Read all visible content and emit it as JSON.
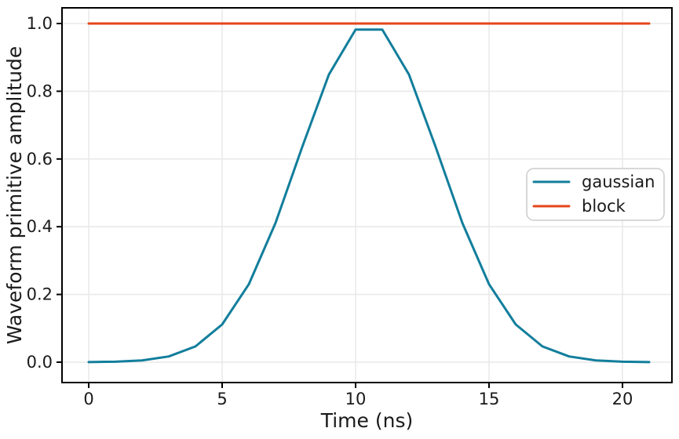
{
  "chart_data": {
    "type": "line",
    "title": "",
    "xlabel": "Time (ns)",
    "ylabel": "Waveform primitive amplitude",
    "x": [
      0,
      1,
      2,
      3,
      4,
      5,
      6,
      7,
      8,
      9,
      10,
      11,
      12,
      13,
      14,
      15,
      16,
      17,
      18,
      19,
      20,
      21
    ],
    "series": [
      {
        "name": "gaussian",
        "color": "#127e9c",
        "values": [
          0.0003,
          0.0014,
          0.0053,
          0.0169,
          0.0466,
          0.1114,
          0.2301,
          0.4111,
          0.6354,
          0.8494,
          0.982,
          0.982,
          0.8494,
          0.6354,
          0.4111,
          0.2301,
          0.1114,
          0.0466,
          0.0169,
          0.0053,
          0.0014,
          0.0003
        ]
      },
      {
        "name": "block",
        "color": "#e5461b",
        "values": [
          1.0,
          1.0,
          1.0,
          1.0,
          1.0,
          1.0,
          1.0,
          1.0,
          1.0,
          1.0,
          1.0,
          1.0,
          1.0,
          1.0,
          1.0,
          1.0,
          1.0,
          1.0,
          1.0,
          1.0,
          1.0,
          1.0
        ]
      }
    ],
    "xlim": [
      -1.05,
      22.05
    ],
    "ylim": [
      -0.05,
      1.05
    ],
    "x_ticks": {
      "positions": [
        0,
        5,
        10,
        15,
        20
      ],
      "labels": [
        "0",
        "5",
        "10",
        "15",
        "20"
      ]
    },
    "y_ticks": {
      "positions": [
        0.0,
        0.2,
        0.4,
        0.6,
        0.8,
        1.0
      ],
      "labels": [
        "0.0",
        "0.2",
        "0.4",
        "0.6",
        "0.8",
        "1.0"
      ]
    },
    "grid": true,
    "legend": {
      "position": "center right",
      "entries": [
        "gaussian",
        "block"
      ]
    }
  },
  "style": {
    "background": "#ffffff",
    "grid_color": "#e9e9e9",
    "spine_color": "#000000",
    "tick_color": "#000000",
    "tick_label_color": "#1a1a1a",
    "axis_label_color": "#1a1a1a",
    "legend_border_color": "#cccccc",
    "legend_background": "#ffffff",
    "legend_text_color": "#1a1a1a"
  }
}
